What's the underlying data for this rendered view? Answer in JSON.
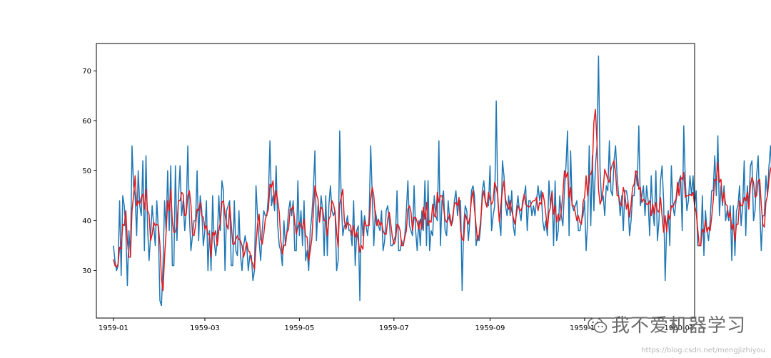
{
  "chart_data": {
    "type": "line",
    "title": "",
    "xlabel": "",
    "ylabel": "",
    "xlim": [
      "1958-12-21",
      "1960-01-11"
    ],
    "ylim": [
      20.5,
      75.5
    ],
    "x_ticks": [
      "1959-01",
      "1959-03",
      "1959-05",
      "1959-07",
      "1959-09",
      "1959-11",
      "1960-01"
    ],
    "y_ticks": [
      30,
      40,
      50,
      60,
      70
    ],
    "grid": false,
    "x_start": "1959-01-01",
    "series": [
      {
        "color": "#1f77b4",
        "values": [
          35,
          32,
          30,
          31,
          44,
          29,
          45,
          43,
          38,
          27,
          38,
          33,
          55,
          47,
          45,
          37,
          50,
          43,
          41,
          52,
          34,
          53,
          39,
          32,
          37,
          43,
          39,
          35,
          44,
          38,
          24,
          23,
          31,
          44,
          38,
          50,
          38,
          51,
          31,
          31,
          51,
          36,
          45,
          51,
          41,
          44,
          38,
          42,
          55,
          41,
          34,
          37,
          40,
          40,
          50,
          36,
          45,
          42,
          35,
          38,
          44,
          30,
          38,
          30,
          45,
          36,
          33,
          36,
          45,
          38,
          48,
          46,
          30,
          42,
          43,
          44,
          31,
          31,
          44,
          34,
          33,
          42,
          33,
          30,
          35,
          37,
          35,
          30,
          33,
          33,
          28,
          30,
          47,
          41,
          36,
          32,
          38,
          42,
          41,
          41,
          45,
          56,
          43,
          45,
          42,
          51,
          39,
          35,
          34,
          31,
          40,
          35,
          38,
          42,
          44,
          41,
          44,
          34,
          34,
          48,
          37,
          42,
          35,
          44,
          32,
          34,
          30,
          38,
          41,
          46,
          54,
          36,
          43,
          40,
          45,
          42,
          33,
          45,
          33,
          43,
          47,
          42,
          41,
          42,
          30,
          32,
          58,
          44,
          37,
          39,
          39,
          41,
          38,
          38,
          35,
          44,
          31,
          38,
          39,
          24,
          42,
          37,
          41,
          39,
          37,
          41,
          55,
          45,
          35,
          42,
          40,
          39,
          38,
          42,
          34,
          36,
          42,
          43,
          40,
          35,
          35,
          36,
          37,
          46,
          34,
          34,
          36,
          35,
          37,
          42,
          48,
          39,
          38,
          37,
          47,
          38,
          34,
          40,
          35,
          42,
          38,
          48,
          35,
          48,
          34,
          38,
          37,
          45,
          41,
          40,
          56,
          35,
          44,
          46,
          38,
          37,
          44,
          40,
          39,
          40,
          44,
          46,
          41,
          44,
          44,
          26,
          39,
          43,
          42,
          36,
          40,
          46,
          47,
          45,
          35,
          37,
          36,
          39,
          46,
          48,
          44,
          43,
          43,
          51,
          38,
          41,
          43,
          64,
          44,
          40,
          37,
          52,
          49,
          43,
          41,
          45,
          41,
          46,
          39,
          37,
          42,
          45,
          42,
          40,
          44,
          45,
          47,
          38,
          44,
          44,
          41,
          43,
          41,
          44,
          47,
          44,
          46,
          40,
          38,
          40,
          37,
          48,
          43,
          46,
          35,
          48,
          36,
          38,
          45,
          41,
          39,
          46,
          51,
          58,
          37,
          54,
          43,
          42,
          43,
          44,
          38,
          38,
          40,
          41,
          44,
          34,
          40,
          55,
          39,
          53,
          42,
          51,
          55,
          73,
          50,
          44,
          45,
          41,
          47,
          46,
          56,
          46,
          45,
          52,
          55,
          49,
          45,
          41,
          45,
          38,
          46,
          46,
          44,
          37,
          40,
          45,
          45,
          50,
          47,
          59,
          43,
          45,
          47,
          41,
          47,
          44,
          37,
          49,
          42,
          39,
          50,
          36,
          40,
          48,
          51,
          44,
          28,
          39,
          42,
          35,
          51,
          43,
          41,
          44,
          46,
          48,
          49,
          38,
          59,
          48,
          42,
          44,
          49,
          45,
          49,
          43,
          46,
          35,
          35,
          35,
          45,
          33,
          42,
          38,
          36,
          40,
          46,
          46,
          53,
          45,
          57,
          41,
          47,
          43,
          47,
          40,
          42,
          40,
          43,
          32,
          43,
          33,
          42,
          43,
          47,
          39,
          43,
          52,
          37,
          47,
          43,
          51,
          52,
          40,
          42,
          49,
          53,
          43,
          34,
          41,
          41,
          49,
          45,
          51,
          55,
          48
        ],
        "name": "",
        "label": ""
      },
      {
        "color": "#e41a1c",
        "values": [
          32.3,
          31.0,
          30.7,
          31.3,
          34.7,
          34.3,
          39.3,
          39.0,
          42.0,
          36.0,
          32.7,
          32.7,
          42.0,
          45.0,
          49.0,
          43.0,
          44.0,
          43.3,
          44.7,
          45.3,
          42.3,
          46.3,
          42.0,
          41.3,
          36.0,
          37.3,
          39.7,
          39.0,
          39.3,
          39.0,
          35.3,
          28.3,
          26.0,
          32.7,
          37.7,
          44.0,
          42.0,
          46.3,
          40.0,
          37.7,
          37.7,
          39.3,
          44.0,
          44.0,
          45.7,
          45.3,
          41.0,
          41.3,
          45.0,
          46.0,
          43.3,
          37.3,
          37.0,
          39.0,
          42.3,
          42.0,
          43.7,
          41.0,
          40.7,
          38.3,
          39.0,
          37.3,
          37.3,
          32.7,
          37.7,
          37.0,
          38.0,
          35.0,
          38.0,
          39.7,
          43.7,
          44.0,
          41.3,
          39.3,
          38.3,
          43.0,
          39.3,
          35.3,
          35.3,
          36.3,
          37.0,
          36.3,
          36.0,
          35.0,
          32.7,
          34.0,
          35.7,
          34.0,
          33.7,
          32.0,
          31.3,
          30.3,
          35.0,
          39.3,
          41.3,
          36.3,
          35.3,
          37.3,
          40.3,
          41.3,
          42.3,
          47.3,
          46.7,
          48.0,
          43.3,
          46.0,
          44.0,
          41.7,
          36.0,
          33.3,
          35.0,
          35.3,
          37.7,
          38.3,
          42.3,
          42.3,
          43.0,
          39.7,
          37.3,
          38.7,
          39.7,
          39.0,
          38.3,
          40.3,
          37.0,
          36.7,
          32.0,
          34.0,
          36.3,
          41.7,
          47.0,
          45.3,
          44.3,
          39.7,
          42.7,
          42.3,
          40.0,
          40.0,
          37.0,
          40.3,
          41.0,
          44.0,
          43.3,
          41.7,
          37.7,
          34.7,
          43.3,
          44.7,
          46.3,
          40.0,
          38.3,
          39.7,
          39.3,
          39.0,
          37.0,
          39.0,
          36.7,
          37.7,
          36.0,
          33.7,
          35.0,
          34.3,
          40.0,
          39.0,
          39.0,
          39.0,
          44.3,
          46.7,
          45.0,
          40.7,
          39.0,
          40.3,
          39.0,
          39.7,
          38.0,
          37.3,
          37.3,
          40.3,
          41.7,
          39.3,
          36.7,
          35.3,
          36.0,
          39.3,
          39.0,
          38.0,
          35.0,
          35.0,
          36.7,
          38.0,
          42.3,
          43.0,
          41.7,
          38.0,
          40.7,
          40.7,
          39.7,
          38.3,
          40.3,
          38.3,
          42.7,
          40.3,
          43.7,
          39.0,
          40.0,
          39.7,
          43.3,
          41.0,
          40.7,
          45.7,
          43.7,
          45.0,
          45.0,
          42.7,
          40.3,
          39.7,
          40.3,
          41.3,
          39.0,
          41.0,
          43.3,
          43.7,
          43.0,
          44.7,
          38.0,
          36.3,
          36.0,
          41.3,
          40.3,
          39.3,
          40.7,
          44.3,
          46.0,
          42.3,
          39.0,
          36.0,
          37.3,
          40.3,
          44.3,
          46.0,
          43.7,
          42.7,
          45.7,
          44.3,
          43.3,
          44.0,
          47.7,
          46.7,
          45.0,
          39.7,
          43.3,
          46.0,
          48.0,
          44.3,
          43.0,
          42.3,
          44.0,
          42.0,
          40.7,
          39.3,
          41.3,
          43.0,
          42.3,
          42.0,
          43.0,
          45.3,
          43.3,
          43.0,
          42.7,
          43.0,
          43.7,
          44.0,
          44.0,
          44.7,
          42.0,
          43.7,
          43.3,
          45.7,
          44.0,
          41.3,
          38.3,
          41.7,
          42.7,
          45.7,
          41.3,
          43.0,
          39.7,
          41.3,
          40.0,
          42.0,
          45.3,
          50.0,
          48.7,
          49.7,
          44.7,
          46.7,
          43.0,
          43.0,
          41.7,
          40.0,
          41.0,
          39.7,
          39.3,
          43.7,
          44.7,
          49.0,
          45.0,
          49.0,
          49.3,
          50.3,
          59.7,
          62.3,
          55.7,
          46.3,
          43.3,
          44.3,
          46.3,
          50.3,
          49.3,
          48.3,
          47.7,
          50.3,
          51.3,
          52.0,
          49.7,
          45.0,
          45.0,
          43.3,
          43.0,
          46.7,
          45.3,
          42.3,
          43.7,
          40.7,
          43.3,
          46.7,
          47.3,
          50.0,
          49.7,
          46.3,
          46.7,
          43.7,
          44.3,
          44.0,
          43.3,
          43.3,
          44.0,
          41.0,
          43.3,
          41.3,
          43.7,
          42.0,
          41.7,
          44.7,
          41.0,
          37.7,
          41.0,
          37.7,
          41.3,
          40.3,
          43.0,
          42.7,
          43.7,
          44.3,
          47.7,
          45.0,
          48.7,
          48.3,
          49.7,
          44.7,
          45.0,
          45.0,
          45.3,
          45.0,
          45.7,
          43.0,
          41.7,
          38.3,
          35.0,
          35.0,
          38.3,
          37.7,
          40.0,
          37.7,
          38.7,
          38.0,
          40.7,
          44.0,
          48.3,
          48.0,
          51.7,
          47.7,
          48.3,
          43.7,
          45.7,
          43.3,
          43.0,
          40.7,
          41.7,
          38.3,
          39.3,
          36.0,
          39.3,
          39.3,
          44.0,
          43.0,
          43.0,
          44.7,
          44.0,
          45.7,
          42.3,
          47.0,
          48.7,
          47.7,
          44.7,
          45.0,
          48.0,
          48.3,
          43.3,
          39.3,
          38.7,
          43.7,
          45.0,
          48.3,
          50.3,
          51.3,
          52.0,
          50.3
        ]
      }
    ]
  },
  "watermark": {
    "brand_text": "我不爱机器学习",
    "url_text": "https://blog.csdn.net/mengjizhiyou",
    "icon": "wechat-icon"
  }
}
